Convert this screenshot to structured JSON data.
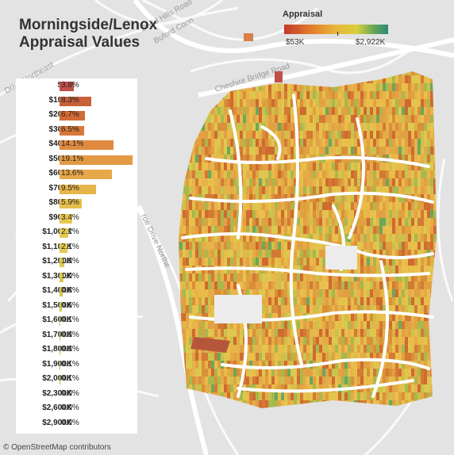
{
  "title_line1": "Morningside/Lenox",
  "title_line2": "Appraisal Values",
  "legend": {
    "title": "Appraisal",
    "min": "$53K",
    "max": "$2,922K"
  },
  "road_labels": {
    "north_druid": "Drive Northeast",
    "buford": "Buford Conn",
    "druid_n": "Druid Hills Road",
    "cheshire": "Cheshire Bridge Road",
    "monroe": "roe Drive Northe",
    "rd": "Rd"
  },
  "credit": "© OpenStreetMap contributors",
  "colors": {
    "low": "#c0392b",
    "mid": "#e8b83a",
    "high": "#2e8b72"
  },
  "chart_data": {
    "type": "bar",
    "categories": [
      "$0K",
      "$100K",
      "$200K",
      "$300K",
      "$400K",
      "$500K",
      "$600K",
      "$700K",
      "$800K",
      "$900K",
      "$1,000K",
      "$1,100K",
      "$1,200K",
      "$1,300K",
      "$1,400K",
      "$1,500K",
      "$1,600K",
      "$1,700K",
      "$1,800K",
      "$1,900K",
      "$2,000K",
      "$2,300K",
      "$2,600K",
      "$2,900K"
    ],
    "values": [
      3.8,
      8.3,
      6.7,
      6.5,
      14.1,
      19.1,
      13.6,
      9.5,
      5.9,
      3.4,
      2.2,
      2.1,
      1.3,
      1.0,
      0.8,
      0.6,
      0.1,
      0.3,
      0.3,
      0.1,
      0.1,
      0.0,
      0.0,
      0.0
    ],
    "labels": [
      "3.8%",
      "8.3%",
      "6.7%",
      "6.5%",
      "14.1%",
      "19.1%",
      "13.6%",
      "9.5%",
      "5.9%",
      "3.4%",
      "2.2%",
      "2.1%",
      "1.3%",
      "1.0%",
      "0.8%",
      "0.6%",
      "0.1%",
      "0.3%",
      "0.3%",
      "0.1%",
      "0.1%",
      "0.0%",
      "0.0%",
      "0.0%"
    ],
    "bar_colors": [
      "#c0504a",
      "#c8603a",
      "#d26a35",
      "#d87838",
      "#e08a40",
      "#e39a45",
      "#e6a848",
      "#e6b64a",
      "#e6bf4c",
      "#e6c850",
      "#e6c850",
      "#e2c850",
      "#dcc84e",
      "#d8c84e",
      "#d2c64c",
      "#cfc64c",
      "#ccc54c",
      "#c8c54c",
      "#c4c54c",
      "#c0c44c",
      "#bcc44c",
      "#b8c34c",
      "#b4c34c",
      "#b0c24c"
    ],
    "xlabel": "",
    "ylabel": ""
  }
}
